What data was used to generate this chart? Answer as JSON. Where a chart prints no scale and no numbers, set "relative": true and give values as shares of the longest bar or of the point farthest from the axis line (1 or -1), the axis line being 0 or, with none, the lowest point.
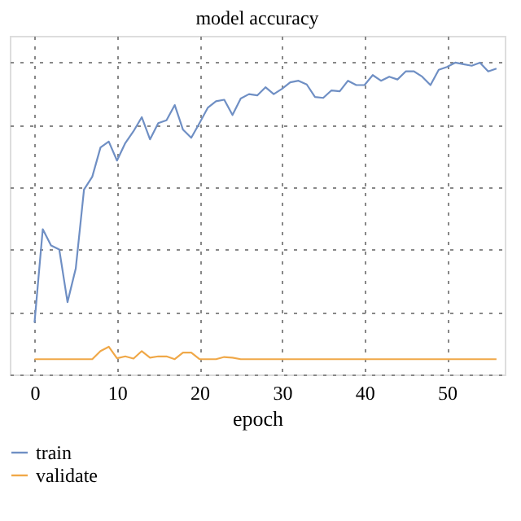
{
  "chart_data": {
    "type": "line",
    "title": "model accuracy",
    "xlabel": "epoch",
    "relative": true,
    "x": [
      0,
      1,
      2,
      3,
      4,
      5,
      6,
      7,
      8,
      9,
      10,
      11,
      12,
      13,
      14,
      15,
      16,
      17,
      18,
      19,
      20,
      21,
      22,
      23,
      24,
      25,
      26,
      27,
      28,
      29,
      30,
      31,
      32,
      33,
      34,
      35,
      36,
      37,
      38,
      39,
      40,
      41,
      42,
      43,
      44,
      45,
      46,
      47,
      48,
      49,
      50,
      51,
      52,
      53,
      54,
      55,
      56
    ],
    "xlim": [
      -3,
      57
    ],
    "xticks": [
      0,
      10,
      20,
      30,
      40,
      50
    ],
    "series": [
      {
        "name": "train",
        "color": "#6f8fc4",
        "values": [
          0.166,
          0.466,
          0.414,
          0.401,
          0.232,
          0.34,
          0.593,
          0.634,
          0.728,
          0.747,
          0.686,
          0.742,
          0.78,
          0.825,
          0.754,
          0.806,
          0.815,
          0.864,
          0.785,
          0.759,
          0.806,
          0.855,
          0.876,
          0.881,
          0.832,
          0.885,
          0.899,
          0.895,
          0.921,
          0.899,
          0.916,
          0.937,
          0.942,
          0.93,
          0.89,
          0.887,
          0.911,
          0.908,
          0.942,
          0.928,
          0.928,
          0.96,
          0.942,
          0.955,
          0.946,
          0.972,
          0.972,
          0.955,
          0.928,
          0.977,
          0.986,
          1.0,
          0.995,
          0.99,
          1.0,
          0.972,
          0.981
        ]
      },
      {
        "name": "validate",
        "color": "#f0a848",
        "values": [
          0.049,
          0.049,
          0.049,
          0.049,
          0.049,
          0.049,
          0.049,
          0.049,
          0.075,
          0.089,
          0.052,
          0.058,
          0.051,
          0.075,
          0.054,
          0.058,
          0.058,
          0.049,
          0.07,
          0.07,
          0.049,
          0.049,
          0.049,
          0.056,
          0.054,
          0.049,
          0.049,
          0.049,
          0.049,
          0.049,
          0.049,
          0.049,
          0.049,
          0.049,
          0.049,
          0.049,
          0.049,
          0.049,
          0.049,
          0.049,
          0.049,
          0.049,
          0.049,
          0.049,
          0.049,
          0.049,
          0.049,
          0.049,
          0.049,
          0.049,
          0.049,
          0.049,
          0.049,
          0.049,
          0.049,
          0.049,
          0.049
        ]
      }
    ],
    "grid": true,
    "legend": "bottom left",
    "line_style": "solid",
    "marker": "none"
  }
}
